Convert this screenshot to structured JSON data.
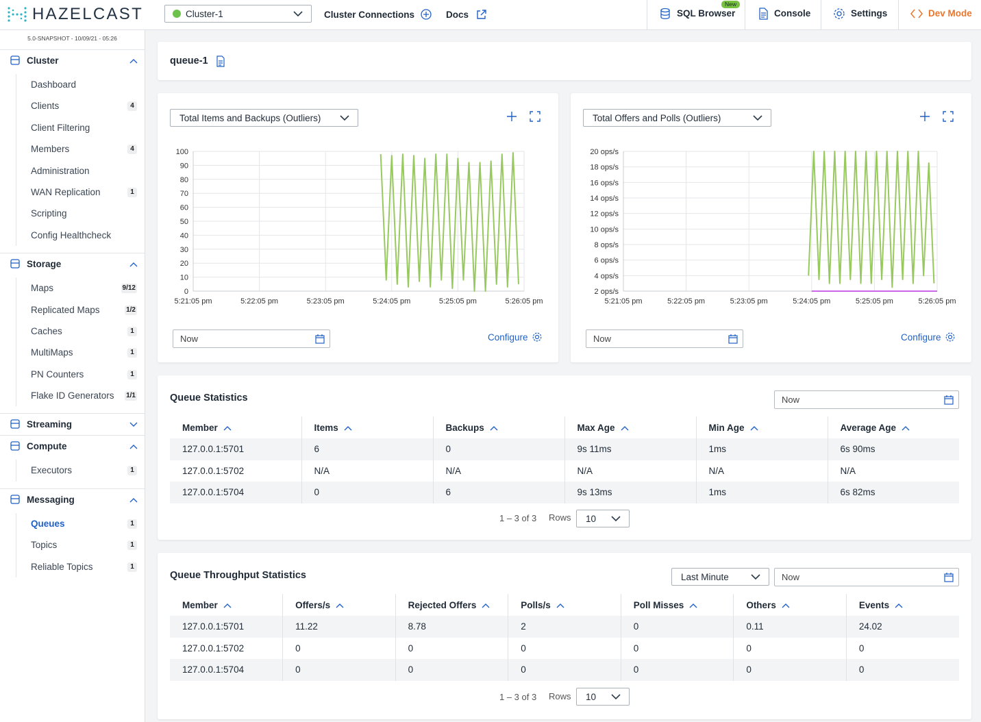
{
  "header": {
    "logo": "HAZELCAST",
    "cluster": "Cluster-1",
    "links": [
      "Cluster Connections",
      "Docs"
    ],
    "tools": [
      {
        "label": "SQL Browser",
        "badge": "New"
      },
      {
        "label": "Console"
      },
      {
        "label": "Settings"
      },
      {
        "label": "Dev Mode"
      }
    ]
  },
  "sidebar": {
    "version": "5.0-SNAPSHOT - 10/09/21 - 05:26",
    "sections": [
      {
        "title": "Cluster",
        "items": [
          {
            "label": "Dashboard"
          },
          {
            "label": "Clients",
            "badge": 4
          },
          {
            "label": "Client Filtering"
          },
          {
            "label": "Members",
            "badge": 4
          },
          {
            "label": "Administration"
          },
          {
            "label": "WAN Replication",
            "badge": 1
          },
          {
            "label": "Scripting"
          },
          {
            "label": "Config Healthcheck"
          }
        ]
      },
      {
        "title": "Storage",
        "items": [
          {
            "label": "Maps",
            "badge": "9/12"
          },
          {
            "label": "Replicated Maps",
            "badge": "1/2"
          },
          {
            "label": "Caches",
            "badge": 1
          },
          {
            "label": "MultiMaps",
            "badge": 1
          },
          {
            "label": "PN Counters",
            "badge": 1
          },
          {
            "label": "Flake ID Generators",
            "badge": "1/1"
          }
        ]
      },
      {
        "title": "Streaming"
      },
      {
        "title": "Compute",
        "items": [
          {
            "label": "Executors",
            "badge": 1
          }
        ]
      },
      {
        "title": "Messaging",
        "items": [
          {
            "label": "Queues",
            "badge": 1,
            "active": true
          },
          {
            "label": "Topics",
            "badge": 1
          },
          {
            "label": "Reliable Topics",
            "badge": 1
          }
        ]
      }
    ]
  },
  "page_title": "queue-1",
  "chart_data": [
    {
      "type": "line",
      "title": "Total Items and Backups (Outliers)",
      "date": "Now",
      "configure": "Configure",
      "xlim": [
        "5:21:05 pm",
        "5:26:05 pm"
      ],
      "xticks": [
        "5:21:05 pm",
        "5:22:05 pm",
        "5:23:05 pm",
        "5:24:05 pm",
        "5:25:05 pm",
        "5:26:05 pm"
      ],
      "ylim": [
        0,
        100
      ],
      "yticks": [
        0,
        10,
        20,
        30,
        40,
        50,
        60,
        70,
        80,
        90,
        100
      ],
      "grid": true,
      "series": [
        {
          "color": "#98c95e",
          "x": [
            "5:23:55 pm",
            "5:24:00 pm",
            "5:24:05 pm",
            "5:24:10 pm",
            "5:24:15 pm",
            "5:24:20 pm",
            "5:24:25 pm",
            "5:24:30 pm",
            "5:24:35 pm",
            "5:24:40 pm",
            "5:24:45 pm",
            "5:24:50 pm",
            "5:24:55 pm",
            "5:25:00 pm",
            "5:25:05 pm",
            "5:25:10 pm",
            "5:25:15 pm",
            "5:25:20 pm",
            "5:25:25 pm",
            "5:25:30 pm",
            "5:25:35 pm",
            "5:25:40 pm",
            "5:25:45 pm",
            "5:25:50 pm",
            "5:25:55 pm",
            "5:26:00 pm"
          ],
          "values": [
            98,
            8,
            97,
            5,
            98,
            3,
            97,
            7,
            95,
            3,
            98,
            8,
            98,
            2,
            95,
            8,
            92,
            0,
            92,
            0,
            93,
            5,
            98,
            3,
            99,
            5
          ]
        }
      ]
    },
    {
      "type": "line",
      "title": "Total Offers and Polls (Outliers)",
      "date": "Now",
      "configure": "Configure",
      "xlim": [
        "5:21:05 pm",
        "5:26:05 pm"
      ],
      "xticks": [
        "5:21:05 pm",
        "5:22:05 pm",
        "5:23:05 pm",
        "5:24:05 pm",
        "5:25:05 pm",
        "5:26:05 pm"
      ],
      "ylim": [
        2,
        20
      ],
      "yticks": [
        {
          "value": 2,
          "label": "2 ops/s"
        },
        {
          "value": 4,
          "label": "4 ops/s"
        },
        {
          "value": 6,
          "label": "6 ops/s"
        },
        {
          "value": 8,
          "label": "8 ops/s"
        },
        {
          "value": 10,
          "label": "10 ops/s"
        },
        {
          "value": 12,
          "label": "12 ops/s"
        },
        {
          "value": 14,
          "label": "14 ops/s"
        },
        {
          "value": 16,
          "label": "16 ops/s"
        },
        {
          "value": 18,
          "label": "18 ops/s"
        },
        {
          "value": 20,
          "label": "20 ops/s"
        }
      ],
      "grid": true,
      "series": [
        {
          "color": "#98c95e",
          "x": [
            "5:24:02 pm",
            "5:24:07 pm",
            "5:24:12 pm",
            "5:24:17 pm",
            "5:24:22 pm",
            "5:24:27 pm",
            "5:24:32 pm",
            "5:24:37 pm",
            "5:24:42 pm",
            "5:24:47 pm",
            "5:24:52 pm",
            "5:24:57 pm",
            "5:25:02 pm",
            "5:25:07 pm",
            "5:25:12 pm",
            "5:25:17 pm",
            "5:25:22 pm",
            "5:25:27 pm",
            "5:25:32 pm",
            "5:25:37 pm",
            "5:25:42 pm",
            "5:25:47 pm",
            "5:25:52 pm",
            "5:25:57 pm",
            "5:26:02 pm"
          ],
          "values": [
            4,
            20,
            3.5,
            20,
            3,
            20,
            3,
            20,
            3.5,
            20,
            3,
            20,
            3,
            20,
            3.5,
            20,
            2.5,
            20,
            3.5,
            20,
            3,
            20,
            4,
            18.5,
            3
          ]
        },
        {
          "color": "#cc66e8",
          "x": [
            "5:24:05 pm",
            "5:26:05 pm"
          ],
          "values": [
            2,
            2
          ]
        }
      ]
    }
  ],
  "queue_statistics": {
    "title": "Queue Statistics",
    "date": "Now",
    "columns": [
      "Member",
      "Items",
      "Backups",
      "Max Age",
      "Min Age",
      "Average Age"
    ],
    "rows": [
      [
        "127.0.0.1:5701",
        6,
        0,
        "9s 11ms",
        "1ms",
        "6s 90ms"
      ],
      [
        "127.0.0.1:5702",
        "N/A",
        "N/A",
        "N/A",
        "N/A",
        "N/A"
      ],
      [
        "127.0.0.1:5704",
        0,
        6,
        "9s 13ms",
        "1ms",
        "6s 82ms"
      ]
    ],
    "pagination": "1 – 3 of 3",
    "rows_label": "Rows",
    "page_size": 10
  },
  "throughput_statistics": {
    "title": "Queue Throughput Statistics",
    "range": "Last Minute",
    "date": "Now",
    "columns": [
      "Member",
      "Offers/s",
      "Rejected Offers",
      "Polls/s",
      "Poll Misses",
      "Others",
      "Events"
    ],
    "rows": [
      [
        "127.0.0.1:5701",
        11.22,
        8.78,
        2,
        0,
        0.11,
        24.02
      ],
      [
        "127.0.0.1:5702",
        0,
        0,
        0,
        0,
        0,
        0
      ],
      [
        "127.0.0.1:5704",
        0,
        0,
        0,
        0,
        0,
        0
      ]
    ],
    "pagination": "1 – 3 of 3",
    "rows_label": "Rows",
    "page_size": 10
  }
}
